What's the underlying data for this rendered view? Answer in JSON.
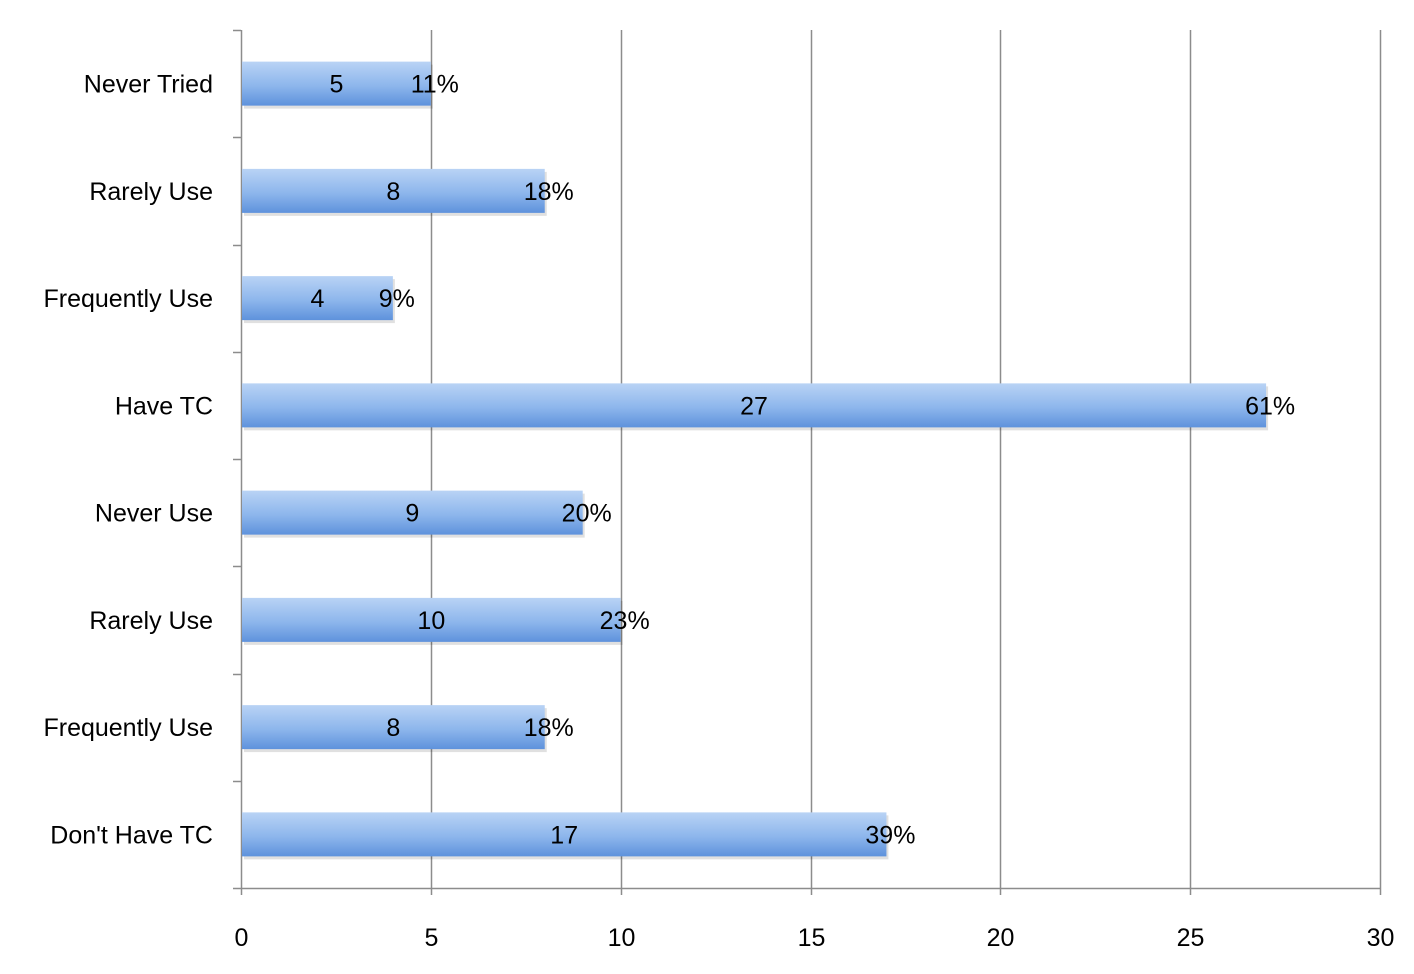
{
  "chart_data": {
    "type": "bar",
    "orientation": "horizontal",
    "categories": [
      "Never Tried",
      "Rarely Use",
      "Frequently Use",
      "Have TC",
      "Never Use",
      "Rarely Use",
      "Frequently Use",
      "Don't Have TC"
    ],
    "values": [
      5,
      8,
      4,
      27,
      9,
      10,
      8,
      17
    ],
    "percent_labels": [
      "11%",
      "18%",
      "9%",
      "61%",
      "20%",
      "23%",
      "18%",
      "39%"
    ],
    "title": "",
    "xlabel": "",
    "ylabel": "",
    "xlim": [
      0,
      30
    ],
    "x_ticks": [
      0,
      5,
      10,
      15,
      20,
      25,
      30
    ],
    "grid": "vertical",
    "legend": "none",
    "colors": {
      "bar_light": "#b9d3f5",
      "bar_mid": "#8db6ec",
      "bar_dark": "#5e92dc",
      "grid": "#8c8c8c",
      "axis": "#8c8c8c",
      "text": "#000000"
    }
  }
}
